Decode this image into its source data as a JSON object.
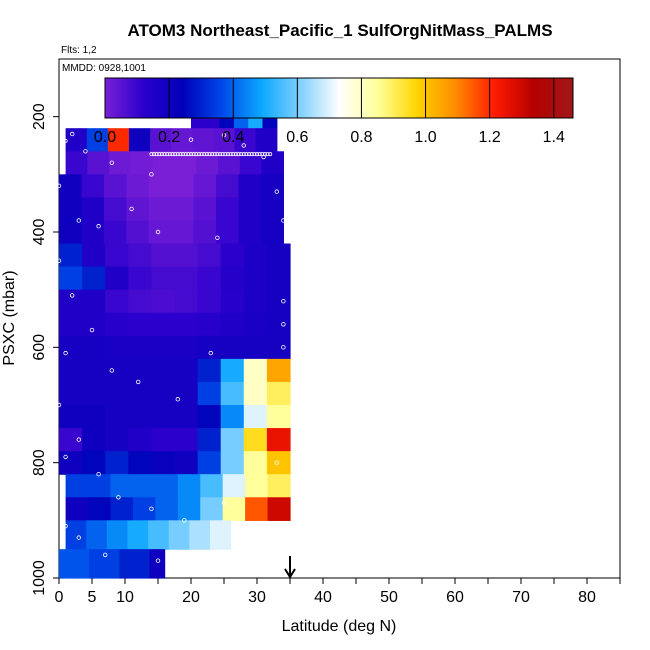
{
  "chart_data": {
    "type": "heatmap",
    "title": "ATOM3 Northeast_Pacific_1 SulfOrgNitMass_PALMS",
    "flights_note": "Flts: 1,2",
    "date_note": "MMDD: 0928,1001",
    "xlabel": "Latitude (deg N)",
    "ylabel": "PSXC (mbar)",
    "xlim": [
      0,
      85
    ],
    "ylim": [
      1000,
      100
    ],
    "x_ticks": [
      0,
      5,
      10,
      20,
      30,
      40,
      50,
      60,
      70,
      80
    ],
    "x_minor_ticks": [
      15,
      25,
      35,
      45,
      55,
      65,
      75,
      85
    ],
    "y_ticks": [
      200,
      400,
      600,
      800,
      1000
    ],
    "colorbar": {
      "range": [
        0,
        1.46
      ],
      "ticks": [
        "0.0",
        "0.2",
        "0.4",
        "0.6",
        "0.8",
        "1.0",
        "1.2",
        "1.4"
      ],
      "tick_values": [
        0,
        0.2,
        0.4,
        0.6,
        0.8,
        1.0,
        1.2,
        1.4
      ],
      "colors": [
        "#7a1fd6",
        "#2a00cc",
        "#0000b8",
        "#0048e8",
        "#0aa6ff",
        "#7fd0ff",
        "#ffffff",
        "#ffff9a",
        "#ffd400",
        "#ff8a00",
        "#ff1a00",
        "#b40000",
        "#a01818"
      ]
    },
    "marker_latitude": 35,
    "rows": [
      {
        "p": [
          180,
          220
        ],
        "x": [
          20,
          33
        ],
        "v": [
          0.12,
          0.12,
          0.25,
          0.4,
          0.5,
          0.25
        ]
      },
      {
        "p": [
          220,
          260
        ],
        "x": [
          1,
          33
        ],
        "v": [
          0.15,
          0.35,
          1.2,
          0.2,
          0.05,
          0.03,
          0.04,
          0.05,
          0.1,
          0.15
        ]
      },
      {
        "p": [
          260,
          300
        ],
        "x": [
          1,
          34
        ],
        "v": [
          0.1,
          0.05,
          0.02,
          0.01,
          0.0,
          0.0,
          0.02,
          0.05,
          0.1,
          0.15
        ]
      },
      {
        "p": [
          300,
          340
        ],
        "x": [
          0,
          34
        ],
        "v": [
          0.2,
          0.1,
          0.05,
          0.02,
          0.0,
          0.0,
          0.03,
          0.08,
          0.15,
          0.18
        ]
      },
      {
        "p": [
          340,
          380
        ],
        "x": [
          0,
          34
        ],
        "v": [
          0.2,
          0.15,
          0.08,
          0.04,
          0.02,
          0.02,
          0.05,
          0.1,
          0.15,
          0.18
        ]
      },
      {
        "p": [
          380,
          420
        ],
        "x": [
          0,
          34
        ],
        "v": [
          0.2,
          0.15,
          0.1,
          0.06,
          0.03,
          0.03,
          0.06,
          0.1,
          0.15,
          0.18
        ]
      },
      {
        "p": [
          420,
          460
        ],
        "x": [
          0,
          35
        ],
        "v": [
          0.3,
          0.15,
          0.1,
          0.08,
          0.06,
          0.06,
          0.08,
          0.12,
          0.16,
          0.18
        ]
      },
      {
        "p": [
          460,
          500
        ],
        "x": [
          0,
          35
        ],
        "v": [
          0.35,
          0.3,
          0.15,
          0.1,
          0.08,
          0.08,
          0.1,
          0.14,
          0.16,
          0.18
        ]
      },
      {
        "p": [
          500,
          540
        ],
        "x": [
          0,
          35
        ],
        "v": [
          0.15,
          0.15,
          0.1,
          0.08,
          0.07,
          0.08,
          0.1,
          0.13,
          0.16,
          0.18
        ]
      },
      {
        "p": [
          540,
          580
        ],
        "x": [
          0,
          35
        ],
        "v": [
          0.15,
          0.15,
          0.13,
          0.12,
          0.12,
          0.12,
          0.13,
          0.15,
          0.17,
          0.18
        ]
      },
      {
        "p": [
          580,
          620
        ],
        "x": [
          0,
          35
        ],
        "v": [
          0.18,
          0.18,
          0.17,
          0.17,
          0.17,
          0.17,
          0.18,
          0.18,
          0.18,
          0.18
        ]
      },
      {
        "p": [
          620,
          660
        ],
        "x": [
          0,
          35
        ],
        "v": [
          0.18,
          0.18,
          0.18,
          0.18,
          0.18,
          0.18,
          0.3,
          0.5,
          0.8,
          1.05
        ]
      },
      {
        "p": [
          660,
          700
        ],
        "x": [
          0,
          35
        ],
        "v": [
          0.18,
          0.18,
          0.18,
          0.18,
          0.18,
          0.18,
          0.35,
          0.55,
          0.8,
          0.9
        ]
      },
      {
        "p": [
          700,
          740
        ],
        "x": [
          0,
          35
        ],
        "v": [
          0.2,
          0.2,
          0.18,
          0.18,
          0.18,
          0.18,
          0.25,
          0.45,
          0.7,
          0.85
        ]
      },
      {
        "p": [
          740,
          780
        ],
        "x": [
          0,
          35
        ],
        "v": [
          0.1,
          0.2,
          0.18,
          0.15,
          0.12,
          0.12,
          0.3,
          0.6,
          0.95,
          1.25
        ]
      },
      {
        "p": [
          780,
          820
        ],
        "x": [
          0,
          35
        ],
        "v": [
          0.2,
          0.25,
          0.3,
          0.25,
          0.22,
          0.2,
          0.35,
          0.6,
          0.85,
          1.0
        ]
      },
      {
        "p": [
          820,
          860
        ],
        "x": [
          1,
          35
        ],
        "v": [
          0.35,
          0.35,
          0.4,
          0.4,
          0.4,
          0.45,
          0.55,
          0.7,
          0.85,
          0.9
        ]
      },
      {
        "p": [
          860,
          900
        ],
        "x": [
          1,
          35
        ],
        "v": [
          0.2,
          0.25,
          0.3,
          0.35,
          0.4,
          0.45,
          0.6,
          0.85,
          1.15,
          1.3
        ]
      },
      {
        "p": [
          900,
          950
        ],
        "x": [
          1,
          26
        ],
        "v": [
          0.35,
          0.4,
          0.45,
          0.5,
          0.55,
          0.6,
          0.65,
          0.7
        ]
      },
      {
        "p": [
          950,
          1000
        ],
        "x": [
          0,
          16
        ],
        "v": [
          0.38,
          0.38,
          0.35,
          0.35,
          0.3,
          0.3,
          0.2
        ]
      }
    ],
    "points": [
      [
        2,
        230
      ],
      [
        4,
        260
      ],
      [
        8,
        280
      ],
      [
        14,
        300
      ],
      [
        20,
        240
      ],
      [
        25,
        232
      ],
      [
        28,
        250
      ],
      [
        31,
        270
      ],
      [
        0,
        320
      ],
      [
        3,
        380
      ],
      [
        6,
        390
      ],
      [
        11,
        360
      ],
      [
        15,
        400
      ],
      [
        24,
        410
      ],
      [
        33,
        330
      ],
      [
        34,
        380
      ],
      [
        0,
        450
      ],
      [
        2,
        510
      ],
      [
        5,
        570
      ],
      [
        1,
        610
      ],
      [
        8,
        640
      ],
      [
        12,
        660
      ],
      [
        18,
        690
      ],
      [
        23,
        610
      ],
      [
        34,
        520
      ],
      [
        34,
        560
      ],
      [
        34,
        600
      ],
      [
        0,
        700
      ],
      [
        3,
        760
      ],
      [
        1,
        790
      ],
      [
        6,
        820
      ],
      [
        9,
        860
      ],
      [
        14,
        880
      ],
      [
        19,
        900
      ],
      [
        25,
        870
      ],
      [
        1,
        910
      ],
      [
        3,
        930
      ],
      [
        7,
        960
      ],
      [
        15,
        970
      ],
      [
        33,
        800
      ]
    ],
    "point_strings": [
      {
        "p": 197,
        "x": [
          27,
          33
        ]
      },
      {
        "p": 265,
        "x": [
          14,
          32
        ]
      },
      {
        "p": 242,
        "x": [
          0.6,
          1.2
        ]
      }
    ]
  }
}
